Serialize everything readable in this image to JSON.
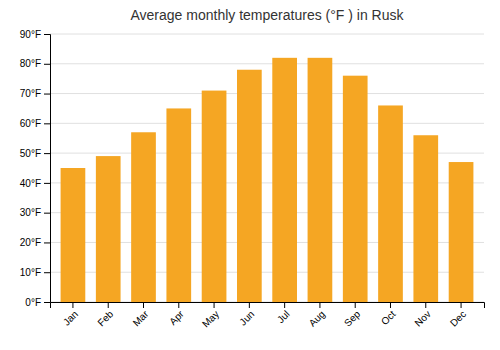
{
  "chart_data": {
    "type": "bar",
    "title": "Average monthly temperatures (°F ) in Rusk",
    "categories": [
      "Jan",
      "Feb",
      "Mar",
      "Apr",
      "May",
      "Jun",
      "Jul",
      "Aug",
      "Sep",
      "Oct",
      "Nov",
      "Dec"
    ],
    "values": [
      45,
      49,
      57,
      65,
      71,
      78,
      82,
      82,
      76,
      66,
      56,
      47
    ],
    "color": "#F5A623",
    "ylim": [
      0,
      90
    ],
    "yticks": [
      {
        "value": 0,
        "label": "0°F"
      },
      {
        "value": 10,
        "label": "10°F"
      },
      {
        "value": 20,
        "label": "20°F"
      },
      {
        "value": 30,
        "label": "30°F"
      },
      {
        "value": 40,
        "label": "40°F"
      },
      {
        "value": 50,
        "label": "50°F"
      },
      {
        "value": 60,
        "label": "60°F"
      },
      {
        "value": 70,
        "label": "70°F"
      },
      {
        "value": 80,
        "label": "80°F"
      },
      {
        "value": 90,
        "label": "90°F"
      }
    ],
    "grid": true
  }
}
